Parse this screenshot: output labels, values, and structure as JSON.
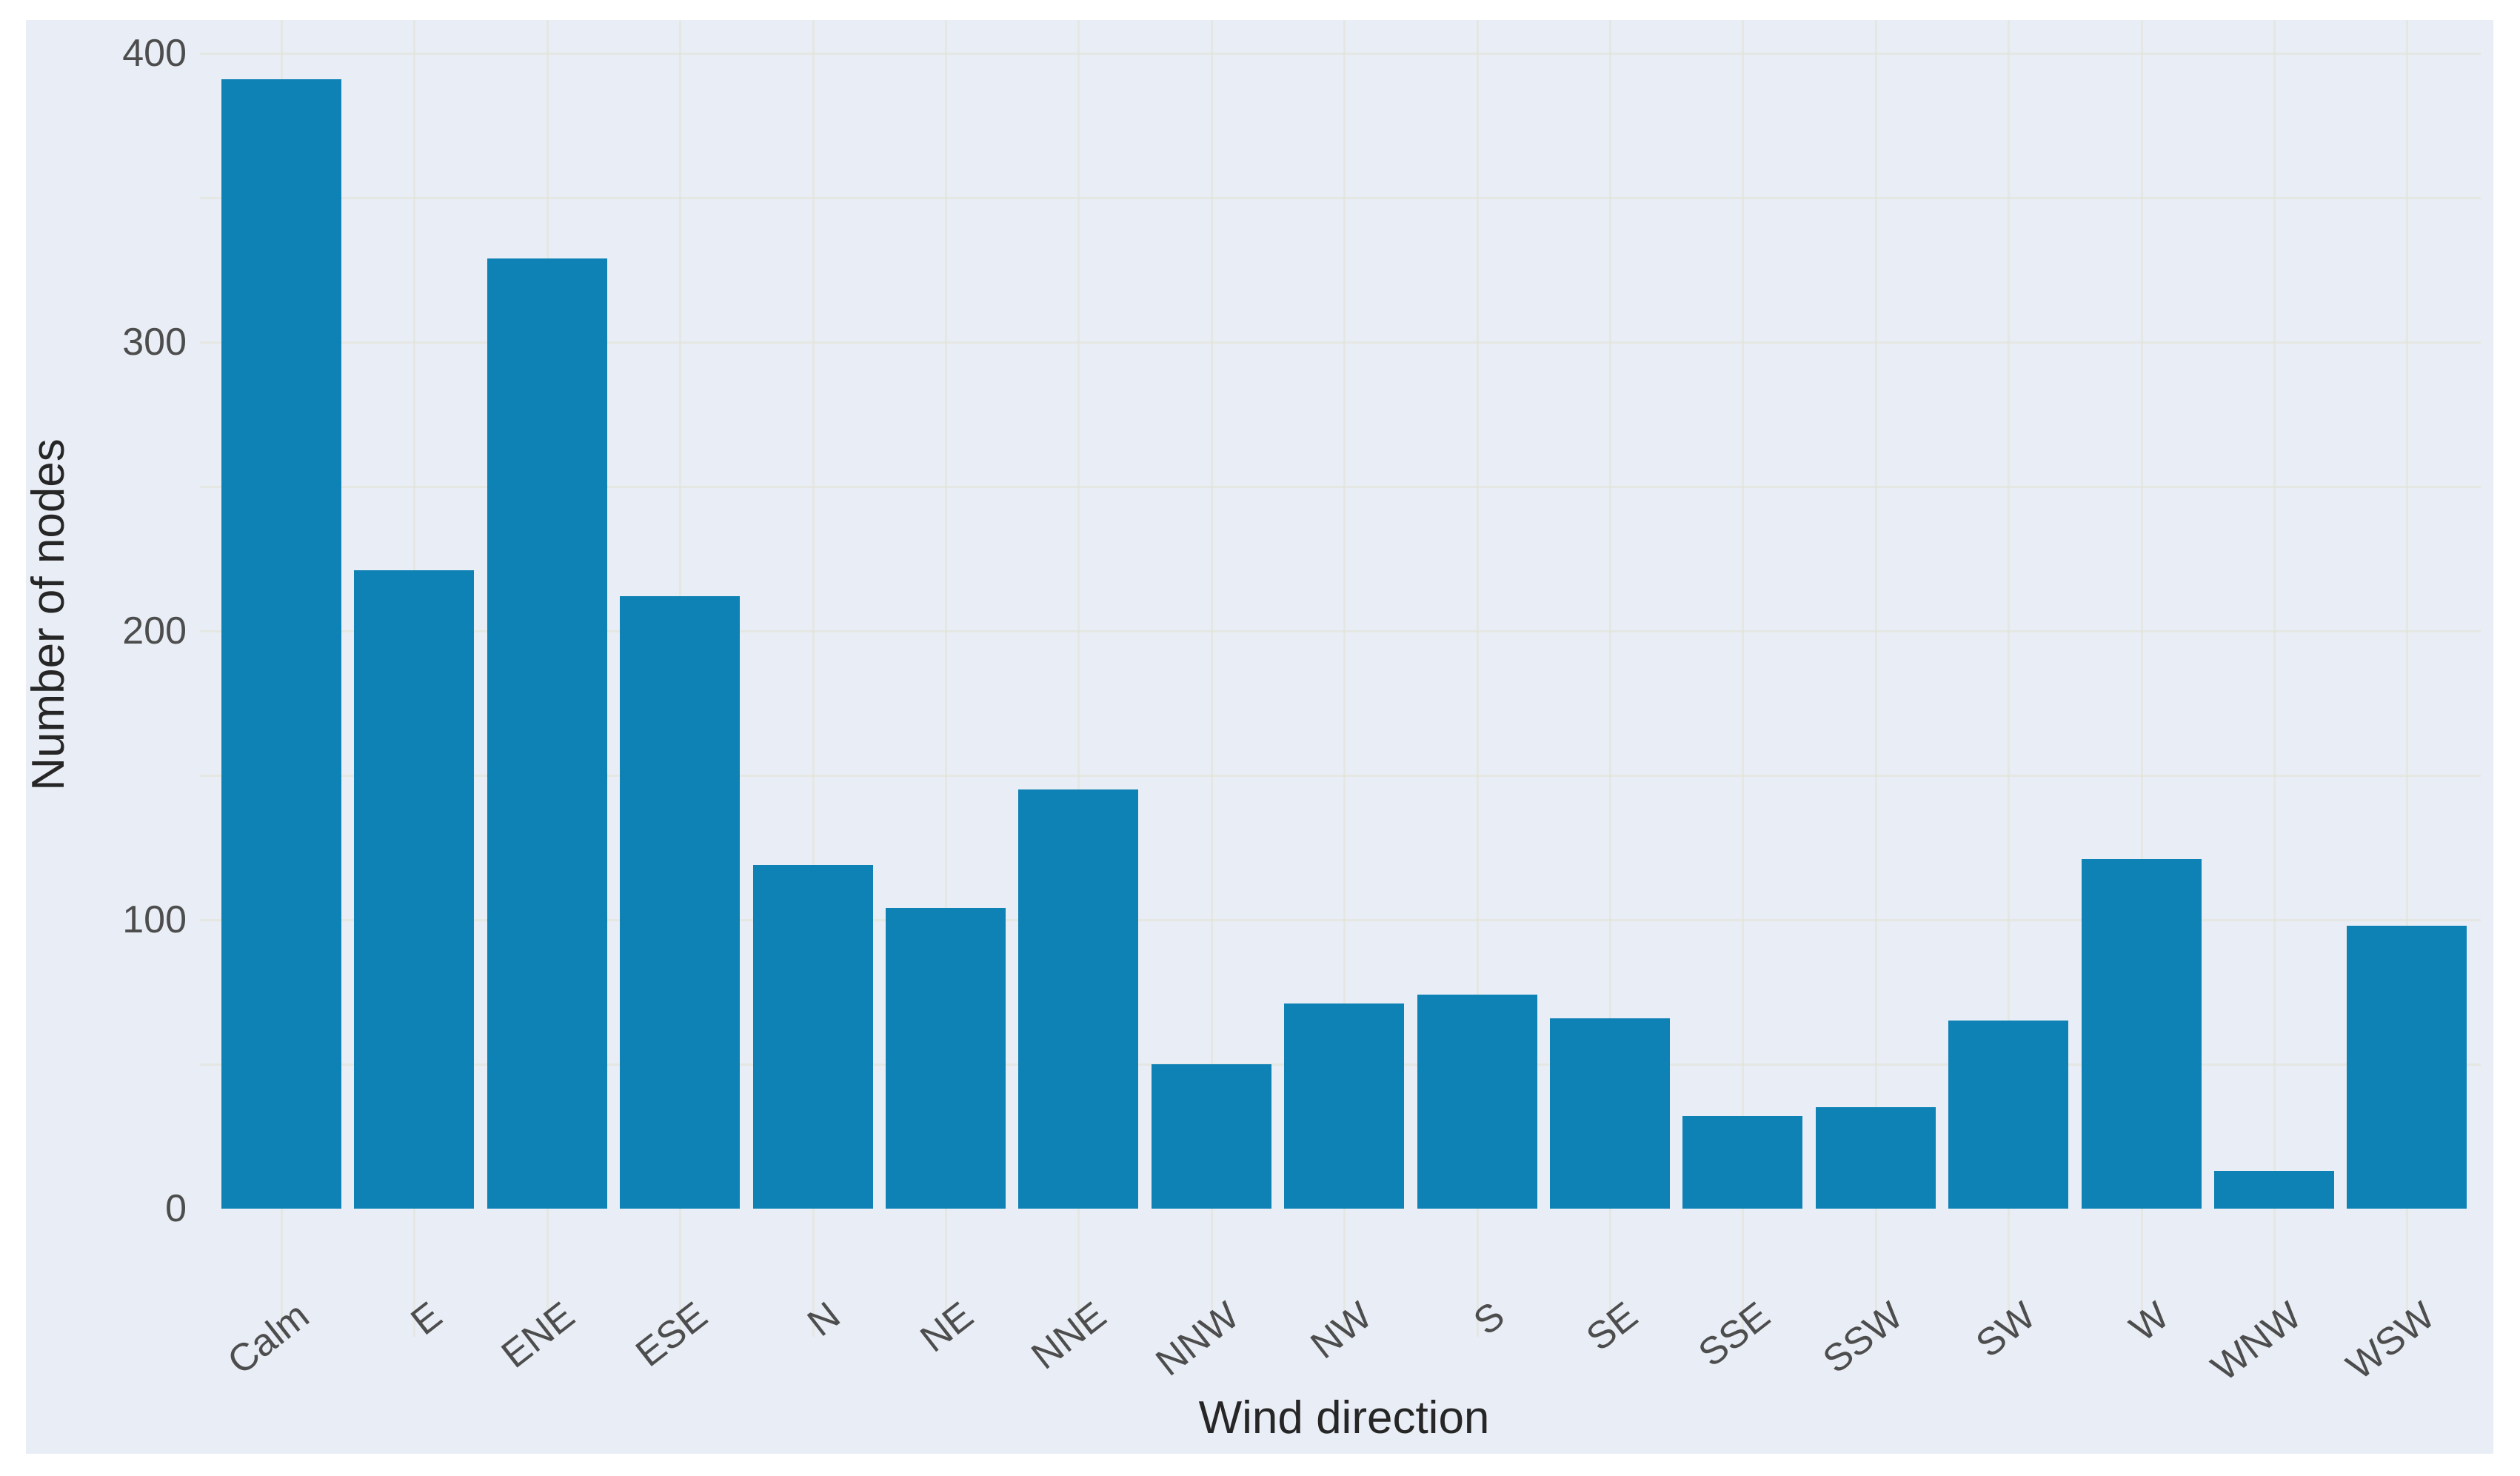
{
  "chart_data": {
    "type": "bar",
    "title": "",
    "xlabel": "Wind direction",
    "ylabel": "Number of nodes",
    "categories": [
      "Calm",
      "E",
      "ENE",
      "ESE",
      "N",
      "NE",
      "NNE",
      "NNW",
      "NW",
      "S",
      "SE",
      "SSE",
      "SSW",
      "SW",
      "W",
      "WNW",
      "WSW"
    ],
    "values": [
      391,
      221,
      329,
      212,
      119,
      104,
      145,
      50,
      71,
      74,
      66,
      32,
      35,
      65,
      121,
      13,
      98
    ],
    "ylim": [
      0,
      400
    ],
    "yticks": [
      0,
      100,
      200,
      300,
      400
    ],
    "y_minor_step": 50,
    "grid": "on",
    "legend": "none",
    "bar_color": "#0e82b5",
    "plot_bg_color": "#e9eef6",
    "grid_color": "#e2e4db",
    "tick_label_color": "#4d4d4d",
    "axis_title_color": "#262626"
  }
}
